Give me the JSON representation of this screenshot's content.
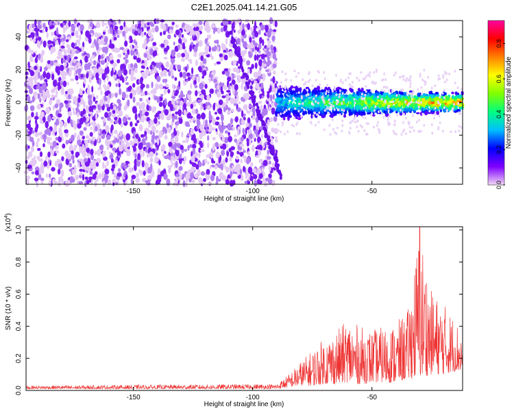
{
  "figure": {
    "title": "C2E1.2025.041.14.21.G05"
  },
  "chart_data": [
    {
      "type": "heatmap",
      "xlabel": "Height of straight line (km)",
      "ylabel": "Frequency (Hz)",
      "xlim": [
        -195,
        -12
      ],
      "ylim": [
        -50,
        50
      ],
      "x_ticks": [
        -150,
        -100,
        -50
      ],
      "y_ticks": [
        -40,
        -20,
        0,
        20,
        40
      ],
      "grid": false,
      "colorbar": {
        "label": "Normalized spectral amplitude",
        "range": [
          0,
          0.93
        ],
        "ticks": [
          0.0,
          0.2,
          0.4,
          0.6,
          0.8
        ],
        "colormap": [
          "#f2d8f4",
          "#7f00ff",
          "#0000ff",
          "#00bfff",
          "#00ff80",
          "#80ff00",
          "#ffff00",
          "#ff8000",
          "#ff0000",
          "#ff00a0"
        ]
      },
      "regions": [
        {
          "x_range": [
            -195,
            -90
          ],
          "y_range": [
            -50,
            50
          ],
          "value_range": [
            0.0,
            0.15
          ],
          "description_value": "broadband noise"
        },
        {
          "x_range": [
            -90,
            -12
          ],
          "y_center": 0,
          "y_halfwidth": 8,
          "value_range": [
            0.1,
            0.9
          ]
        }
      ]
    },
    {
      "type": "line",
      "xlabel": "Height of straight line (km)",
      "ylabel": "SNR (10 * v/v)",
      "multiplier_label": "(x10^4)",
      "multiplier_base": "(x10",
      "multiplier_exp": "4",
      "xlim": [
        -195,
        -12
      ],
      "ylim": [
        0,
        1.02
      ],
      "x_ticks": [
        -150,
        -100,
        -50
      ],
      "y_ticks": [
        0.0,
        0.2,
        0.4,
        0.6,
        0.8,
        1.0
      ],
      "grid": false,
      "series": [
        {
          "color": "#ee3333",
          "envelope": [
            {
              "x": -195,
              "low": 0.01,
              "high": 0.03
            },
            {
              "x": -90,
              "low": 0.01,
              "high": 0.04
            },
            {
              "x": -85,
              "low": 0.02,
              "high": 0.1
            },
            {
              "x": -80,
              "low": 0.03,
              "high": 0.18
            },
            {
              "x": -75,
              "low": 0.03,
              "high": 0.25
            },
            {
              "x": -70,
              "low": 0.04,
              "high": 0.33
            },
            {
              "x": -65,
              "low": 0.04,
              "high": 0.37
            },
            {
              "x": -60,
              "low": 0.05,
              "high": 0.45
            },
            {
              "x": -55,
              "low": 0.04,
              "high": 0.4
            },
            {
              "x": -50,
              "low": 0.05,
              "high": 0.38
            },
            {
              "x": -45,
              "low": 0.05,
              "high": 0.4
            },
            {
              "x": -40,
              "low": 0.05,
              "high": 0.42
            },
            {
              "x": -35,
              "low": 0.07,
              "high": 0.5
            },
            {
              "x": -30,
              "low": 0.08,
              "high": 1.02
            },
            {
              "x": -25,
              "low": 0.1,
              "high": 0.62
            },
            {
              "x": -20,
              "low": 0.1,
              "high": 0.55
            },
            {
              "x": -15,
              "low": 0.12,
              "high": 0.45
            },
            {
              "x": -12,
              "low": 0.12,
              "high": 0.35
            }
          ],
          "peak": {
            "x": -30,
            "y": 1.02
          }
        }
      ]
    }
  ]
}
